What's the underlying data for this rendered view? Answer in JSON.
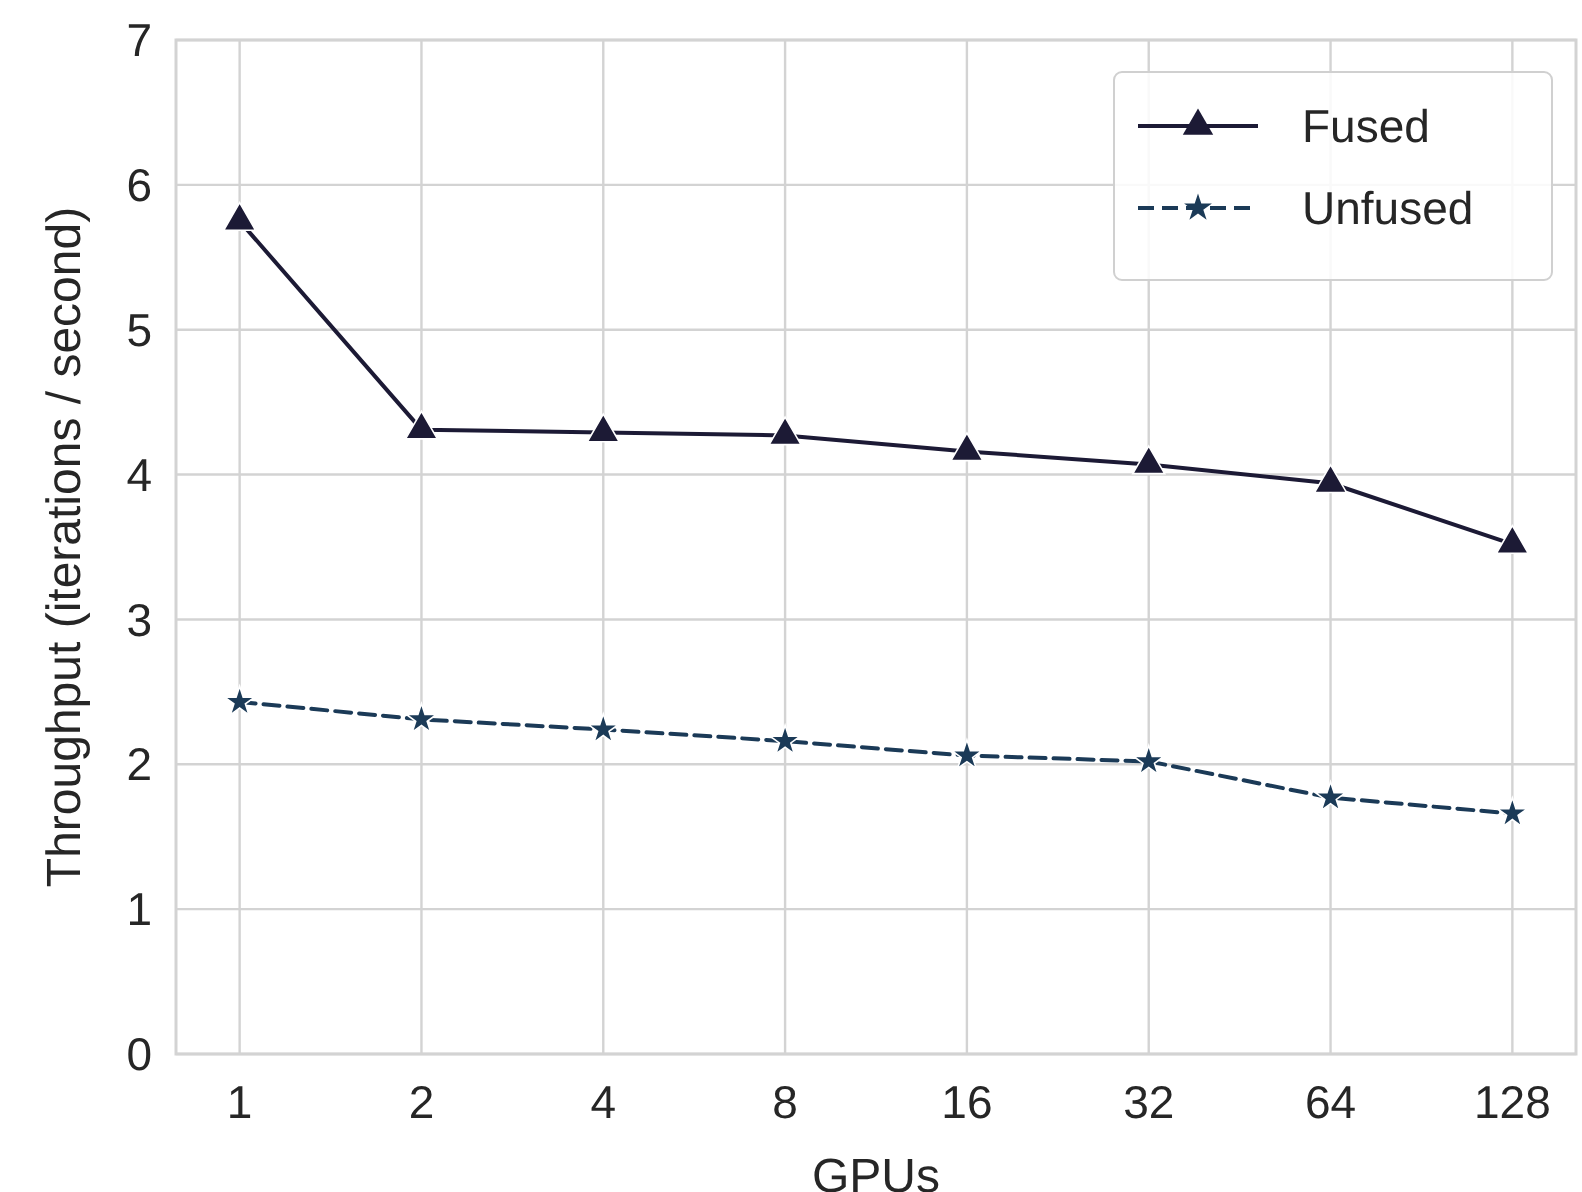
{
  "chart_data": {
    "type": "line",
    "xlabel": "GPUs",
    "ylabel": "Throughput (iterations / second)",
    "categories": [
      "1",
      "2",
      "4",
      "8",
      "16",
      "32",
      "64",
      "128"
    ],
    "series": [
      {
        "name": "Fused",
        "color": "#1c1a35",
        "marker": "triangle",
        "line_style": "solid",
        "values": [
          5.75,
          4.31,
          4.29,
          4.27,
          4.16,
          4.07,
          3.94,
          3.52
        ]
      },
      {
        "name": "Unfused",
        "color": "#1b3a57",
        "marker": "star",
        "line_style": "dashed",
        "values": [
          2.43,
          2.31,
          2.24,
          2.16,
          2.06,
          2.02,
          1.77,
          1.66
        ]
      }
    ],
    "ylim": [
      0,
      7
    ],
    "yticks": [
      0,
      1,
      2,
      3,
      4,
      5,
      6,
      7
    ],
    "grid": true,
    "legend": "top right"
  }
}
